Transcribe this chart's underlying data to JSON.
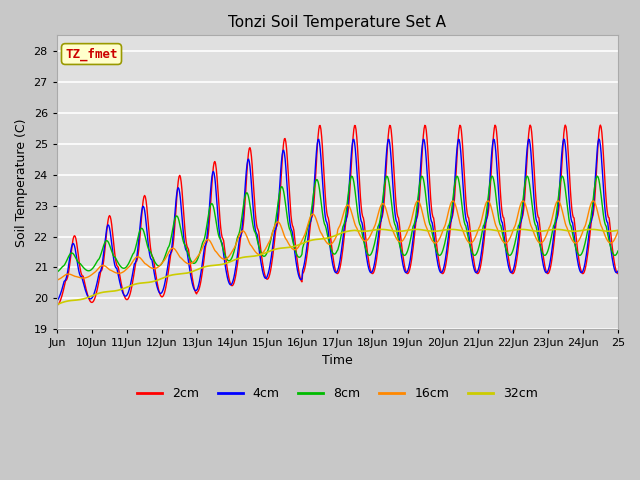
{
  "title": "Tonzi Soil Temperature Set A",
  "xlabel": "Time",
  "ylabel": "Soil Temperature (C)",
  "annotation": "TZ_fmet",
  "ylim": [
    19.0,
    28.5
  ],
  "yticks": [
    19.0,
    20.0,
    21.0,
    22.0,
    23.0,
    24.0,
    25.0,
    26.0,
    27.0,
    28.0
  ],
  "line_colors": {
    "2cm": "#ff0000",
    "4cm": "#0000ff",
    "8cm": "#00bb00",
    "16cm": "#ff8800",
    "32cm": "#cccc00"
  },
  "fig_bg": "#c8c8c8",
  "ax_bg": "#e0e0e0",
  "grid_color": "#ffffff",
  "title_fontsize": 11,
  "label_fontsize": 9,
  "tick_fontsize": 8
}
